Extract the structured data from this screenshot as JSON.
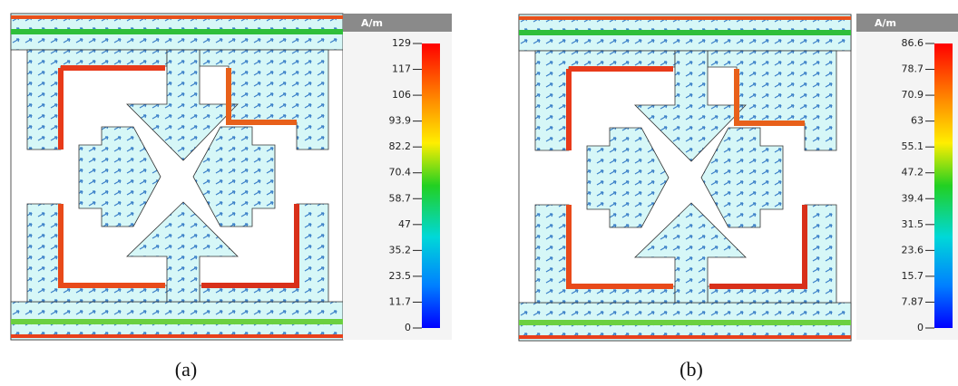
{
  "panels": [
    {
      "unit": "A/m",
      "scale_labels": [
        "129",
        "117",
        "106",
        "93.9",
        "82.2",
        "70.4",
        "58.7",
        "47",
        "35.2",
        "23.5",
        "11.7",
        "0"
      ],
      "caption": "(a)"
    },
    {
      "unit": "A/m",
      "scale_labels": [
        "86.6",
        "78.7",
        "70.9",
        "63",
        "55.1",
        "47.2",
        "39.4",
        "31.5",
        "23.6",
        "15.7",
        "7.87",
        "0"
      ],
      "caption": "(b)"
    }
  ]
}
